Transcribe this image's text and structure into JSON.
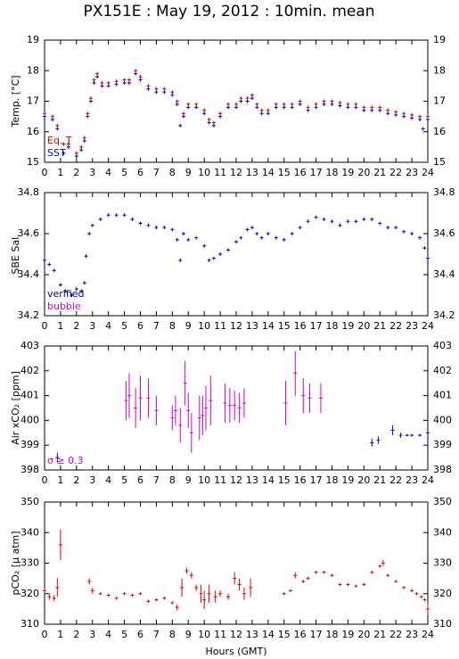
{
  "title": "PX151E : May 19, 2012 : 10min. mean",
  "chart_data": [
    {
      "type": "scatter",
      "ylabel": "Temp. [°C]",
      "legend": "lower left",
      "xlim": [
        0,
        24
      ],
      "xticks": [
        0,
        1,
        2,
        3,
        4,
        5,
        6,
        7,
        8,
        9,
        10,
        11,
        12,
        13,
        14,
        15,
        16,
        17,
        18,
        19,
        20,
        21,
        22,
        23,
        24
      ],
      "ylim": [
        15,
        19
      ],
      "yticks": [
        15,
        16,
        17,
        18,
        19
      ],
      "series": [
        {
          "name": "Eq. T",
          "color": "#d00000",
          "x": [
            0,
            0.5,
            0.8,
            1.2,
            1.5,
            2,
            2.3,
            2.5,
            2.7,
            2.9,
            3.1,
            3.3,
            3.6,
            4,
            4.5,
            5,
            5.3,
            5.7,
            6,
            6.5,
            7,
            7.5,
            8,
            8.3,
            8.7,
            9,
            9.5,
            10,
            10.3,
            10.6,
            11,
            11.5,
            12,
            12.3,
            12.7,
            13,
            13.3,
            13.6,
            14,
            14.5,
            15,
            15.5,
            16,
            16.5,
            17,
            17.5,
            18,
            18.5,
            19,
            19.5,
            20,
            20.5,
            21,
            21.5,
            22,
            22.5,
            23,
            23.5,
            24
          ],
          "values": [
            16.6,
            16.5,
            16.2,
            15.6,
            15.6,
            15.3,
            15.5,
            15.8,
            16.6,
            17.1,
            17.7,
            17.9,
            17.6,
            17.6,
            17.65,
            17.7,
            17.7,
            18.0,
            17.8,
            17.5,
            17.4,
            17.4,
            17.3,
            17.0,
            16.6,
            16.9,
            16.9,
            16.7,
            16.4,
            16.3,
            16.6,
            16.9,
            16.9,
            17.1,
            17.1,
            17.2,
            16.9,
            16.7,
            16.7,
            16.9,
            16.9,
            16.9,
            17.0,
            16.8,
            16.9,
            17.0,
            17.0,
            16.95,
            16.9,
            16.9,
            16.8,
            16.8,
            16.8,
            16.7,
            16.65,
            16.6,
            16.55,
            16.5,
            16.5
          ]
        },
        {
          "name": "SST",
          "color": "#0000d0",
          "x": [
            0,
            0.5,
            0.8,
            1.2,
            1.5,
            2,
            2.3,
            2.5,
            2.7,
            2.9,
            3.1,
            3.3,
            3.6,
            4,
            4.5,
            5,
            5.3,
            5.7,
            6,
            6.5,
            7,
            7.5,
            8,
            8.3,
            8.5,
            8.7,
            9,
            9.5,
            10,
            10.3,
            10.6,
            11,
            11.5,
            12,
            12.3,
            12.7,
            13,
            13.3,
            13.6,
            14,
            14.5,
            15,
            15.5,
            16,
            16.5,
            17,
            17.5,
            18,
            18.5,
            19,
            19.5,
            20,
            20.5,
            21,
            21.5,
            22,
            22.5,
            23,
            23.5,
            23.7,
            24
          ],
          "values": [
            16.5,
            16.4,
            16.1,
            15.3,
            15.5,
            15.2,
            15.4,
            15.7,
            16.5,
            17.0,
            17.6,
            17.8,
            17.5,
            17.5,
            17.55,
            17.6,
            17.6,
            17.9,
            17.7,
            17.4,
            17.3,
            17.3,
            17.2,
            16.9,
            16.2,
            16.5,
            16.8,
            16.8,
            16.6,
            16.3,
            16.2,
            16.5,
            16.8,
            16.8,
            17.0,
            17.0,
            17.1,
            16.8,
            16.6,
            16.6,
            16.8,
            16.8,
            16.8,
            16.9,
            16.7,
            16.8,
            16.9,
            16.9,
            16.85,
            16.8,
            16.8,
            16.7,
            16.7,
            16.7,
            16.6,
            16.55,
            16.5,
            16.45,
            16.4,
            16.1,
            16.4
          ]
        }
      ]
    },
    {
      "type": "scatter",
      "ylabel": "SBE Sal.",
      "legend": "lower left",
      "xlim": [
        0,
        24
      ],
      "xticks": [
        0,
        1,
        2,
        3,
        4,
        5,
        6,
        7,
        8,
        9,
        10,
        11,
        12,
        13,
        14,
        15,
        16,
        17,
        18,
        19,
        20,
        21,
        22,
        23,
        24
      ],
      "ylim": [
        34.2,
        34.8
      ],
      "yticks": [
        34.2,
        34.4,
        34.6,
        34.8
      ],
      "series": [
        {
          "name": "verified",
          "color": "#0000d0",
          "x": [
            0,
            0.3,
            0.6,
            1,
            1.3,
            1.7,
            2,
            2.3,
            2.5,
            2.6,
            2.8,
            3,
            3.5,
            4,
            4.5,
            5,
            5.5,
            6,
            6.5,
            7,
            7.5,
            8,
            8.3,
            8.5,
            8.7,
            9,
            9.5,
            10,
            10.3,
            10.6,
            11,
            11.5,
            12,
            12.3,
            12.7,
            13,
            13.3,
            13.6,
            14,
            14.5,
            15,
            15.5,
            16,
            16.5,
            17,
            17.5,
            18,
            18.5,
            19,
            19.5,
            20,
            20.5,
            21,
            21.5,
            22,
            22.5,
            23,
            23.5,
            23.8,
            24
          ],
          "values": [
            34.47,
            34.45,
            34.42,
            34.35,
            34.32,
            34.3,
            34.33,
            34.32,
            34.36,
            34.49,
            34.6,
            34.64,
            34.67,
            34.69,
            34.69,
            34.69,
            34.67,
            34.65,
            34.64,
            34.63,
            34.63,
            34.62,
            34.57,
            34.47,
            34.6,
            34.57,
            34.58,
            34.54,
            34.47,
            34.48,
            34.5,
            34.52,
            34.56,
            34.58,
            34.62,
            34.63,
            34.6,
            34.58,
            34.6,
            34.58,
            34.57,
            34.6,
            34.63,
            34.66,
            34.68,
            34.67,
            34.66,
            34.64,
            34.66,
            34.66,
            34.67,
            34.67,
            34.65,
            34.63,
            34.63,
            34.61,
            34.6,
            34.58,
            34.53,
            34.48
          ]
        },
        {
          "name": "bubble",
          "color": "#d000d0",
          "x": [],
          "values": []
        }
      ]
    },
    {
      "type": "scatter",
      "ylabel": "Air xCO₂ [ppm]",
      "legend": "lower left",
      "xlim": [
        0,
        24
      ],
      "xticks": [
        0,
        1,
        2,
        3,
        4,
        5,
        6,
        7,
        8,
        9,
        10,
        11,
        12,
        13,
        14,
        15,
        16,
        17,
        18,
        19,
        20,
        21,
        22,
        23,
        24
      ],
      "ylim": [
        398,
        403
      ],
      "yticks": [
        398,
        399,
        400,
        401,
        402,
        403
      ],
      "series": [
        {
          "name": "σ ≥ 0.3",
          "color": "#d000d0",
          "x": [
            5.1,
            5.3,
            5.7,
            6,
            6.5,
            7,
            8,
            8.2,
            8.5,
            8.8,
            9,
            9.2,
            9.7,
            9.9,
            10.1,
            10.4,
            11.3,
            11.6,
            11.9,
            12.2,
            12.5,
            15.1,
            15.7,
            16.2,
            16.6,
            17.3
          ],
          "values": [
            400.8,
            401,
            400.5,
            400.9,
            400.9,
            400.4,
            400.1,
            400.4,
            399.8,
            401.5,
            400.4,
            399.5,
            400.1,
            400.2,
            400.5,
            400.8,
            400.7,
            400.6,
            400.6,
            400.5,
            400.7,
            400.7,
            401.9,
            401,
            400.9,
            400.9
          ],
          "errors": [
            0.8,
            0.9,
            0.8,
            0.9,
            0.8,
            0.6,
            0.5,
            0.6,
            0.7,
            0.9,
            0.7,
            0.8,
            0.9,
            0.8,
            0.9,
            1,
            0.8,
            0.7,
            0.6,
            0.6,
            0.6,
            0.9,
            0.9,
            0.7,
            0.6,
            0.6
          ]
        },
        {
          "color": "#0000d0",
          "x": [
            0.8,
            20.5,
            20.9,
            21.8,
            22.3,
            22.7,
            23,
            23.5,
            24
          ],
          "values": [
            398.5,
            399.1,
            399.2,
            399.6,
            399.4,
            399.4,
            399.4,
            399.4,
            399.5
          ],
          "errors": [
            0.2,
            0.15,
            0.15,
            0.2,
            0.1,
            0.05,
            0.05,
            0.05,
            0.05
          ]
        }
      ]
    },
    {
      "type": "scatter",
      "ylabel": "pCO₂ [μ atm]",
      "xlabel": "Hours (GMT)",
      "xlim": [
        0,
        24
      ],
      "xticks": [
        0,
        1,
        2,
        3,
        4,
        5,
        6,
        7,
        8,
        9,
        10,
        11,
        12,
        13,
        14,
        15,
        16,
        17,
        18,
        19,
        20,
        21,
        22,
        23,
        24
      ],
      "ylim": [
        310,
        350
      ],
      "yticks": [
        310,
        320,
        330,
        340,
        350
      ],
      "series": [
        {
          "color": "#e00000",
          "x": [
            0,
            0.3,
            0.6,
            0.8,
            1,
            2.8,
            3,
            3.5,
            4,
            4.5,
            5,
            5.5,
            6,
            6.5,
            7,
            7.5,
            8,
            8.3,
            8.6,
            8.9,
            9.2,
            9.5,
            9.8,
            10,
            10.3,
            10.7,
            11,
            11.5,
            11.9,
            12.2,
            12.5,
            12.9,
            15,
            15.4,
            15.7,
            16.2,
            16.5,
            17,
            17.5,
            18,
            18.5,
            19,
            19.5,
            20,
            20.5,
            21,
            21.2,
            21.5,
            22,
            22.5,
            23,
            23.3,
            23.6,
            23.8,
            24
          ],
          "values": [
            321,
            319,
            318.5,
            322,
            336,
            324,
            321,
            320,
            319.5,
            318.5,
            320,
            319.5,
            320,
            317.5,
            318,
            318.5,
            317,
            315.5,
            322,
            327.5,
            326,
            322,
            320,
            318,
            320,
            319,
            320,
            319,
            325,
            323,
            320,
            322,
            320,
            321,
            326,
            324,
            325,
            327,
            327,
            326,
            323,
            323,
            322.5,
            323,
            327,
            329,
            330,
            326,
            324,
            322,
            321,
            320,
            319,
            318,
            315
          ],
          "errors": [
            1,
            1,
            1,
            3,
            5,
            1,
            1,
            0.5,
            0.5,
            0.5,
            0.5,
            0.5,
            0.5,
            0.5,
            0.5,
            0.5,
            0.5,
            1,
            3,
            1,
            1,
            1,
            3,
            3,
            3,
            2,
            1,
            1,
            2,
            2,
            2,
            3,
            0.5,
            0.5,
            1,
            0.5,
            0.5,
            0.5,
            0.5,
            0.5,
            0.5,
            0.5,
            0.5,
            0.5,
            0.5,
            0.5,
            1,
            0.5,
            0.5,
            0.5,
            0.5,
            0.5,
            0.5,
            0.5,
            2
          ]
        }
      ]
    }
  ]
}
